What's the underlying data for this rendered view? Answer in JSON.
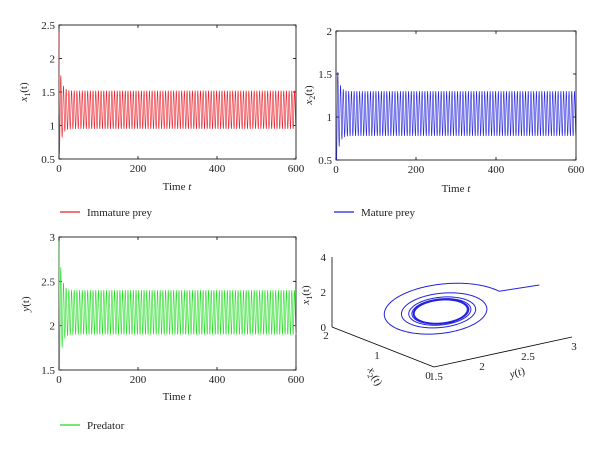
{
  "chart_data": [
    {
      "type": "line",
      "xlabel_main": "Time",
      "xlabel_var": "t",
      "ylabel_main": "x",
      "ylabel_sub": "1",
      "ylabel_arg": "(t)",
      "xlim": [
        0,
        600
      ],
      "ylim": [
        0.5,
        2.5
      ],
      "xticks": [
        "0",
        "200",
        "400",
        "600"
      ],
      "yticks": [
        "0.5",
        "1",
        "1.5",
        "2",
        "2.5"
      ],
      "color": "#e8202a",
      "legend": "Immature prey",
      "series": [
        {
          "name": "Immature prey",
          "initial": 2.4,
          "steady_min": 0.95,
          "steady_max": 1.52,
          "period": 6.8,
          "transient_low": 0.7,
          "transient_high": 2.0
        }
      ]
    },
    {
      "type": "line",
      "xlabel_main": "Time",
      "xlabel_var": "t",
      "ylabel_main": "x",
      "ylabel_sub": "2",
      "ylabel_arg": "(t)",
      "xlim": [
        0,
        600
      ],
      "ylim": [
        0.5,
        2
      ],
      "xticks": [
        "0",
        "200",
        "400",
        "600"
      ],
      "yticks": [
        "0.5",
        "1",
        "1.5",
        "2"
      ],
      "color": "#2222dd",
      "legend": "Mature prey",
      "series": [
        {
          "name": "Mature prey",
          "initial": 0.55,
          "steady_min": 0.78,
          "steady_max": 1.3,
          "period": 6.8,
          "transient_low": 0.55,
          "transient_high": 1.77
        }
      ]
    },
    {
      "type": "line",
      "xlabel_main": "Time",
      "xlabel_var": "t",
      "ylabel_main": "y",
      "ylabel_sub": "",
      "ylabel_arg": "(t)",
      "xlim": [
        0,
        600
      ],
      "ylim": [
        1.5,
        3
      ],
      "xticks": [
        "0",
        "200",
        "400",
        "600"
      ],
      "yticks": [
        "1.5",
        "2",
        "2.5",
        "3"
      ],
      "color": "#22dd22",
      "legend": "Predator",
      "series": [
        {
          "name": "Predator",
          "initial": 2.95,
          "steady_min": 1.9,
          "steady_max": 2.4,
          "period": 6.8,
          "transient_low": 1.65,
          "transient_high": 2.95
        }
      ]
    },
    {
      "type": "line",
      "projection": "3d",
      "color": "#2222dd",
      "xlabel_main": "y",
      "xlabel_arg": "(t)",
      "ylabel_main": "x",
      "ylabel_sub": "2",
      "ylabel_arg": "(t)",
      "zlabel_main": "x",
      "zlabel_sub": "1",
      "zlabel_arg": "(t)",
      "xlim": [
        1.5,
        3
      ],
      "ylim": [
        0,
        2
      ],
      "zlim": [
        0,
        4
      ],
      "xticks": [
        "1.5",
        "2",
        "2.5",
        "3"
      ],
      "yticks": [
        "0",
        "1",
        "2"
      ],
      "zticks": [
        "0",
        "2",
        "4"
      ],
      "series": [
        {
          "name": "trajectory",
          "start": {
            "y": 2.95,
            "x2": 0.55,
            "x1": 2.4
          },
          "limit_cycle": {
            "y_range": [
              1.9,
              2.4
            ],
            "x2_range": [
              0.78,
              1.3
            ],
            "x1_range": [
              0.95,
              1.52
            ]
          }
        }
      ]
    }
  ]
}
